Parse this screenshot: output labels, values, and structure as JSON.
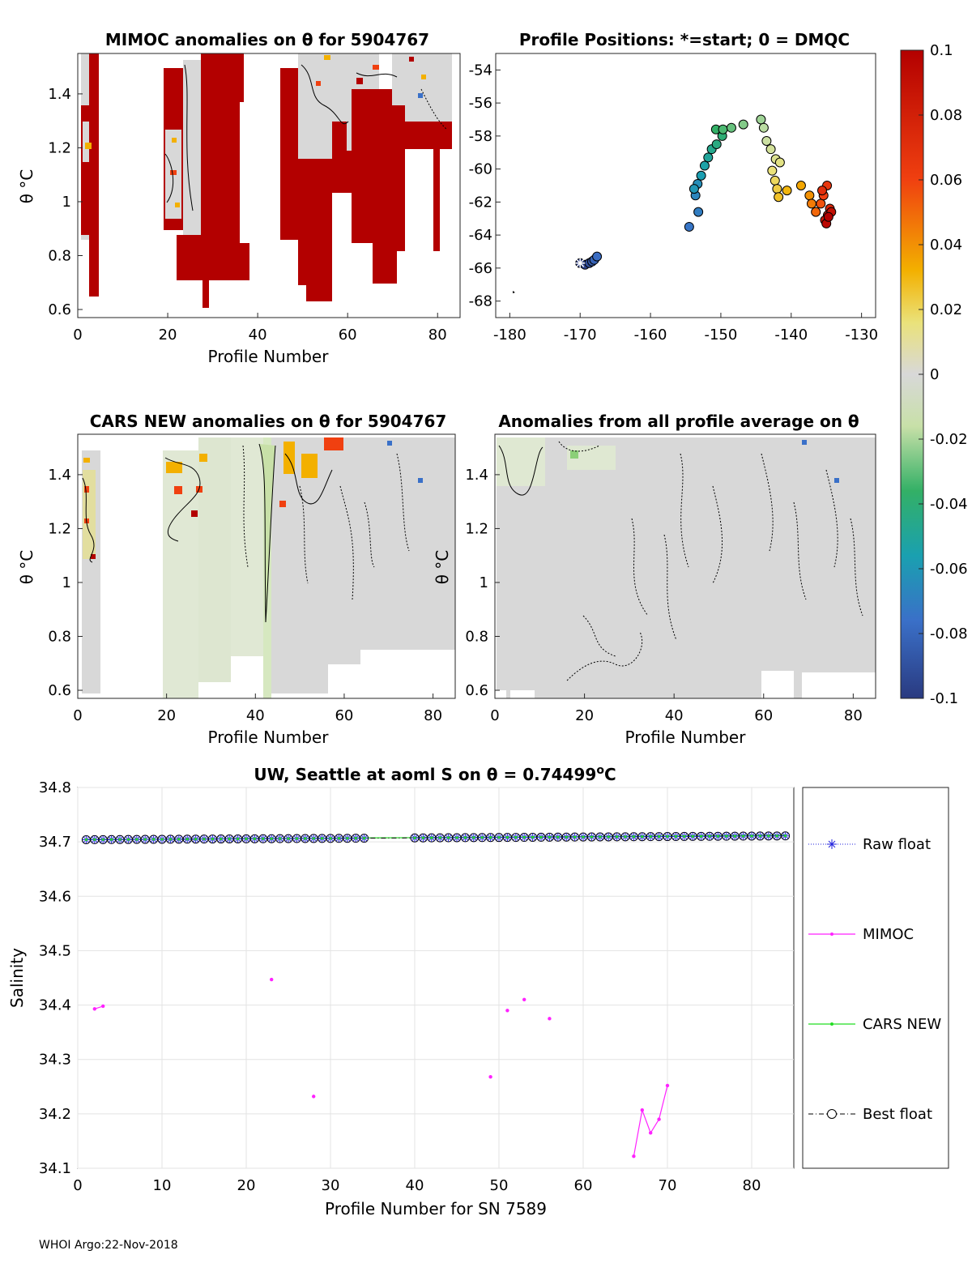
{
  "footer": "WHOI Argo:22-Nov-2018",
  "colorbar": {
    "ticks": [
      "0.1",
      "0.08",
      "0.06",
      "0.04",
      "0.02",
      "0",
      "-0.02",
      "-0.04",
      "-0.06",
      "-0.08",
      "-0.1"
    ],
    "range": [
      -0.1,
      0.1
    ]
  },
  "panels": {
    "mimoc": {
      "title": "MIMOC anomalies on θ  for 5904767",
      "xlabel": "Profile Number",
      "ylabel": "θ °C",
      "xticks": [
        "0",
        "20",
        "40",
        "60",
        "80"
      ],
      "yticks": [
        "1.4",
        "1.2",
        "1",
        "0.8",
        "0.6"
      ]
    },
    "positions": {
      "title": "Profile Positions: *=start; 0 = DMQC",
      "xticks": [
        "-180",
        "-170",
        "-160",
        "-150",
        "-140",
        "-130"
      ],
      "yticks": [
        "-54",
        "-56",
        "-58",
        "-60",
        "-62",
        "-64",
        "-66",
        "-68"
      ]
    },
    "cars": {
      "title": "CARS NEW anomalies on θ for 5904767",
      "xlabel": "Profile Number",
      "ylabel": "θ °C",
      "xticks": [
        "0",
        "20",
        "40",
        "60",
        "80"
      ],
      "yticks": [
        "1.4",
        "1.2",
        "1",
        "0.8",
        "0.6"
      ]
    },
    "average": {
      "title": "Anomalies from all profile average on θ",
      "xlabel": "Profile Number",
      "ylabel": "θ °C",
      "xticks": [
        "0",
        "20",
        "40",
        "60",
        "80"
      ],
      "yticks": [
        "1.4",
        "1.2",
        "1",
        "0.8",
        "0.6"
      ]
    }
  },
  "chart_data": [
    {
      "type": "heatmap",
      "id": "mimoc",
      "title": "MIMOC anomalies on θ  for 5904767",
      "xlabel": "Profile Number",
      "ylabel": "θ °C",
      "xlim": [
        0,
        85
      ],
      "ylim": [
        0.57,
        1.55
      ],
      "note": "Mostly strong positive anomalies (>=0.1) in profiles 19-35 and 45-84; near-zero anomalies at top right"
    },
    {
      "type": "scatter",
      "id": "positions",
      "title": "Profile Positions: *=start; 0 = DMQC",
      "xlim": [
        -182,
        -128
      ],
      "ylim": [
        -69,
        -53
      ],
      "start": [
        -170,
        -65.7
      ],
      "points": [
        [
          -170,
          -65.7
        ],
        [
          -169.3,
          -65.8
        ],
        [
          -168.7,
          -65.7
        ],
        [
          -168.3,
          -65.6
        ],
        [
          -168.0,
          -65.5
        ],
        [
          -167.6,
          -65.3
        ],
        [
          -154.5,
          -63.5
        ],
        [
          -153.2,
          -62.6
        ],
        [
          -153.6,
          -61.6
        ],
        [
          -153.3,
          -60.9
        ],
        [
          -153.8,
          -61.2
        ],
        [
          -152.8,
          -60.4
        ],
        [
          -152.3,
          -59.8
        ],
        [
          -151.8,
          -59.3
        ],
        [
          -151.3,
          -58.8
        ],
        [
          -150.6,
          -58.5
        ],
        [
          -149.8,
          -58.0
        ],
        [
          -150.7,
          -57.6
        ],
        [
          -149.7,
          -57.6
        ],
        [
          -148.5,
          -57.5
        ],
        [
          -146.8,
          -57.3
        ],
        [
          -144.3,
          -57.0
        ],
        [
          -143.9,
          -57.5
        ],
        [
          -143.5,
          -58.3
        ],
        [
          -142.9,
          -58.8
        ],
        [
          -142.2,
          -59.4
        ],
        [
          -141.6,
          -59.6
        ],
        [
          -142.7,
          -60.1
        ],
        [
          -142.3,
          -60.7
        ],
        [
          -142.0,
          -61.2
        ],
        [
          -141.8,
          -61.7
        ],
        [
          -140.6,
          -61.3
        ],
        [
          -138.6,
          -61.0
        ],
        [
          -137.4,
          -61.6
        ],
        [
          -137.1,
          -62.1
        ],
        [
          -136.5,
          -62.6
        ],
        [
          -135.8,
          -62.1
        ],
        [
          -135.4,
          -61.6
        ],
        [
          -134.9,
          -61.0
        ],
        [
          -135.6,
          -61.3
        ],
        [
          -134.5,
          -62.4
        ],
        [
          -134.8,
          -62.8
        ],
        [
          -135.2,
          -63.1
        ],
        [
          -134.3,
          -62.6
        ],
        [
          -135.0,
          -63.3
        ],
        [
          -134.7,
          -62.9
        ]
      ]
    },
    {
      "type": "heatmap",
      "id": "cars",
      "title": "CARS NEW anomalies on θ for 5904767",
      "xlabel": "Profile Number",
      "ylabel": "θ °C",
      "xlim": [
        0,
        85
      ],
      "ylim": [
        0.57,
        1.55
      ]
    },
    {
      "type": "heatmap",
      "id": "average",
      "title": "Anomalies from all profile average on θ",
      "xlabel": "Profile Number",
      "ylabel": "θ °C",
      "xlim": [
        0,
        85
      ],
      "ylim": [
        0.57,
        1.55
      ]
    },
    {
      "type": "line",
      "id": "salinity",
      "title": "UW, Seattle at aoml S on θ = 0.74499°C",
      "title_main": "UW, Seattle at aoml S on θ = 0.74499",
      "title_unit": "C",
      "title_deg": "o",
      "xlabel": "Profile Number for SN 7589",
      "ylabel": "Salinity",
      "xlim": [
        0,
        85
      ],
      "ylim": [
        34.1,
        34.8
      ],
      "xticks": [
        "0",
        "10",
        "20",
        "30",
        "40",
        "50",
        "60",
        "70",
        "80"
      ],
      "yticks": [
        "34.8",
        "34.7",
        "34.6",
        "34.5",
        "34.4",
        "34.3",
        "34.2",
        "34.1"
      ],
      "legend": [
        "Raw float",
        "MIMOC",
        "CARS NEW",
        "Best float"
      ],
      "series": [
        {
          "name": "Raw float",
          "x": [
            1,
            2,
            3,
            4,
            5,
            6,
            7,
            8,
            9,
            10,
            11,
            12,
            13,
            14,
            15,
            16,
            17,
            18,
            19,
            20,
            21,
            22,
            23,
            24,
            25,
            26,
            27,
            28,
            29,
            30,
            31,
            32,
            33,
            34,
            40,
            41,
            42,
            43,
            44,
            45,
            46,
            47,
            48,
            49,
            50,
            51,
            52,
            53,
            54,
            55,
            56,
            57,
            58,
            59,
            60,
            61,
            62,
            63,
            64,
            65,
            66,
            67,
            68,
            69,
            70,
            71,
            72,
            73,
            74,
            75,
            76,
            77,
            78,
            79,
            80,
            81,
            82,
            83,
            84
          ],
          "base_start": 34.704,
          "base_end": 34.711
        },
        {
          "name": "MIMOC",
          "points": [
            [
              2,
              34.393
            ],
            [
              3,
              34.398
            ],
            [
              23,
              34.447
            ],
            [
              28,
              34.232
            ],
            [
              49,
              34.268
            ],
            [
              51,
              34.39
            ],
            [
              53,
              34.41
            ],
            [
              56,
              34.375
            ],
            [
              66,
              34.122
            ],
            [
              67,
              34.207
            ],
            [
              68,
              34.165
            ],
            [
              69,
              34.19
            ],
            [
              70,
              34.252
            ]
          ]
        },
        {
          "name": "CARS NEW",
          "value": 34.708
        }
      ]
    }
  ]
}
